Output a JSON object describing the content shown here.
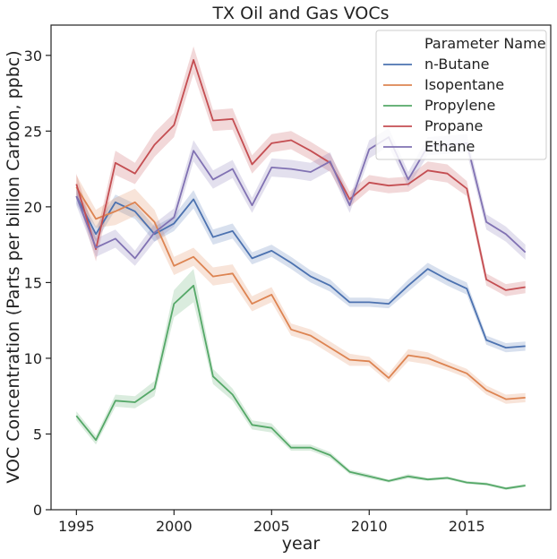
{
  "chart_data": {
    "type": "line",
    "title": "TX Oil and Gas VOCs",
    "xlabel": "year",
    "ylabel": "VOC Concentration (Parts per billion Carbon, ppbc)",
    "xlim": [
      1993.7,
      2019.3
    ],
    "ylim": [
      0,
      32
    ],
    "xticks": [
      1995,
      2000,
      2005,
      2010,
      2015
    ],
    "yticks": [
      0,
      5,
      10,
      15,
      20,
      25,
      30
    ],
    "grid": false,
    "legend": {
      "title": "Parameter Name",
      "placement": "top-right"
    },
    "x": [
      1995,
      1996,
      1997,
      1998,
      1999,
      2000,
      2001,
      2002,
      2003,
      2004,
      2005,
      2006,
      2007,
      2008,
      2009,
      2010,
      2011,
      2012,
      2013,
      2014,
      2015,
      2016,
      2017,
      2018
    ],
    "series": [
      {
        "name": "n-Butane",
        "color": "#4c72b0",
        "values": [
          20.7,
          18.2,
          20.3,
          19.7,
          18.2,
          18.9,
          20.5,
          18.0,
          18.4,
          16.6,
          17.1,
          16.3,
          15.4,
          14.8,
          13.7,
          13.7,
          13.6,
          14.8,
          15.9,
          15.2,
          14.6,
          11.2,
          10.7,
          10.8
        ],
        "band": [
          0.5,
          0.5,
          0.5,
          0.5,
          0.5,
          0.5,
          0.6,
          0.5,
          0.5,
          0.4,
          0.4,
          0.4,
          0.4,
          0.4,
          0.3,
          0.3,
          0.3,
          0.4,
          0.4,
          0.4,
          0.4,
          0.3,
          0.3,
          0.3
        ]
      },
      {
        "name": "Isopentane",
        "color": "#dd8452",
        "values": [
          21.3,
          19.2,
          19.7,
          20.3,
          19.0,
          16.1,
          16.7,
          15.4,
          15.6,
          13.6,
          14.2,
          11.9,
          11.5,
          10.7,
          9.9,
          9.8,
          8.7,
          10.2,
          10.0,
          9.5,
          9.0,
          7.9,
          7.3,
          7.4
        ],
        "band": [
          0.8,
          0.6,
          0.9,
          0.9,
          0.8,
          0.6,
          0.6,
          0.6,
          0.6,
          0.5,
          0.5,
          0.4,
          0.4,
          0.4,
          0.4,
          0.3,
          0.3,
          0.4,
          0.4,
          0.3,
          0.3,
          0.3,
          0.3,
          0.3
        ]
      },
      {
        "name": "Propylene",
        "color": "#55a868",
        "values": [
          6.2,
          4.6,
          7.2,
          7.1,
          8.0,
          13.6,
          14.8,
          8.8,
          7.6,
          5.6,
          5.4,
          4.1,
          4.1,
          3.6,
          2.5,
          2.2,
          1.9,
          2.2,
          2.0,
          2.1,
          1.8,
          1.7,
          1.4,
          1.6
        ],
        "band": [
          0.3,
          0.3,
          0.4,
          0.4,
          0.5,
          0.9,
          1.1,
          0.5,
          0.4,
          0.3,
          0.3,
          0.2,
          0.2,
          0.2,
          0.15,
          0.15,
          0.1,
          0.15,
          0.1,
          0.1,
          0.1,
          0.1,
          0.1,
          0.1
        ]
      },
      {
        "name": "Propane",
        "color": "#c44e52",
        "values": [
          21.5,
          17.2,
          22.9,
          22.2,
          24.1,
          25.4,
          29.7,
          25.7,
          25.8,
          22.8,
          24.2,
          24.4,
          23.7,
          22.9,
          20.5,
          21.6,
          21.4,
          21.5,
          22.4,
          22.2,
          21.2,
          15.2,
          14.5,
          14.7
        ],
        "band": [
          0.7,
          0.8,
          0.8,
          0.7,
          0.8,
          0.8,
          0.9,
          0.7,
          0.7,
          0.6,
          0.6,
          0.6,
          0.6,
          0.6,
          0.5,
          0.5,
          0.5,
          0.5,
          0.6,
          0.6,
          0.5,
          0.4,
          0.4,
          0.4
        ]
      },
      {
        "name": "Ethane",
        "color": "#8172b3",
        "values": [
          20.7,
          17.3,
          17.9,
          16.6,
          18.3,
          19.3,
          23.7,
          21.8,
          22.5,
          20.1,
          22.6,
          22.5,
          22.3,
          23.0,
          20.1,
          23.8,
          24.6,
          21.8,
          24.0,
          24.1,
          24.2,
          19.0,
          18.2,
          17.0
        ],
        "band": [
          0.6,
          0.6,
          0.6,
          0.5,
          0.6,
          0.6,
          0.7,
          0.6,
          0.6,
          0.5,
          0.6,
          0.6,
          0.6,
          0.6,
          0.5,
          0.6,
          0.6,
          0.5,
          0.6,
          0.6,
          0.6,
          0.5,
          0.5,
          0.5
        ]
      }
    ]
  }
}
